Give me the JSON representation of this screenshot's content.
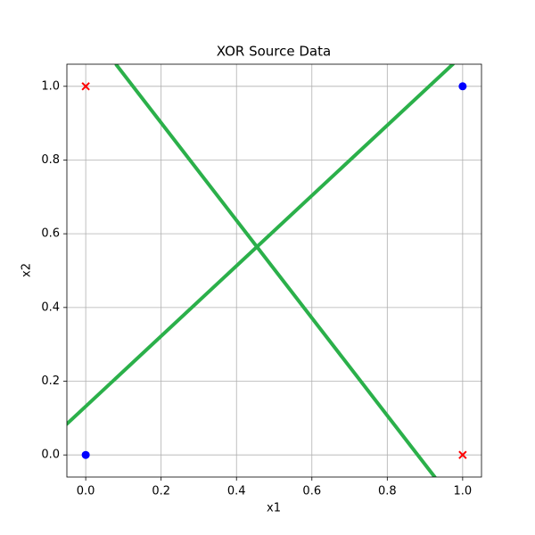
{
  "chart_data": {
    "type": "scatter",
    "title": "XOR Source Data",
    "xlabel": "x1",
    "ylabel": "x2",
    "xlim": [
      -0.05,
      1.05
    ],
    "ylim": [
      -0.06,
      1.06
    ],
    "xticks": [
      {
        "value": 0,
        "label": "0.0"
      },
      {
        "value": 0.2,
        "label": "0.2"
      },
      {
        "value": 0.4,
        "label": "0.4"
      },
      {
        "value": 0.6,
        "label": "0.6"
      },
      {
        "value": 0.8,
        "label": "0.8"
      },
      {
        "value": 1,
        "label": "1.0"
      }
    ],
    "yticks": [
      {
        "value": 0,
        "label": "0.0"
      },
      {
        "value": 0.2,
        "label": "0.2"
      },
      {
        "value": 0.4,
        "label": "0.4"
      },
      {
        "value": 0.6,
        "label": "0.6"
      },
      {
        "value": 0.8,
        "label": "0.8"
      },
      {
        "value": 1,
        "label": "1.0"
      }
    ],
    "grid": true,
    "series": [
      {
        "style": "line",
        "color": "#2bb04a",
        "x": [
          -0.05,
          0.974
        ],
        "y": [
          0.084,
          1.06
        ]
      },
      {
        "style": "line",
        "color": "#2bb04a",
        "x": [
          0.0815,
          0.926
        ],
        "y": [
          1.058,
          -0.06
        ]
      },
      {
        "style": "o",
        "color": "#0000ff",
        "x": [
          0,
          1
        ],
        "y": [
          0,
          1
        ]
      },
      {
        "style": "x",
        "color": "#ff0000",
        "x": [
          0,
          1
        ],
        "y": [
          1,
          0
        ]
      }
    ]
  }
}
